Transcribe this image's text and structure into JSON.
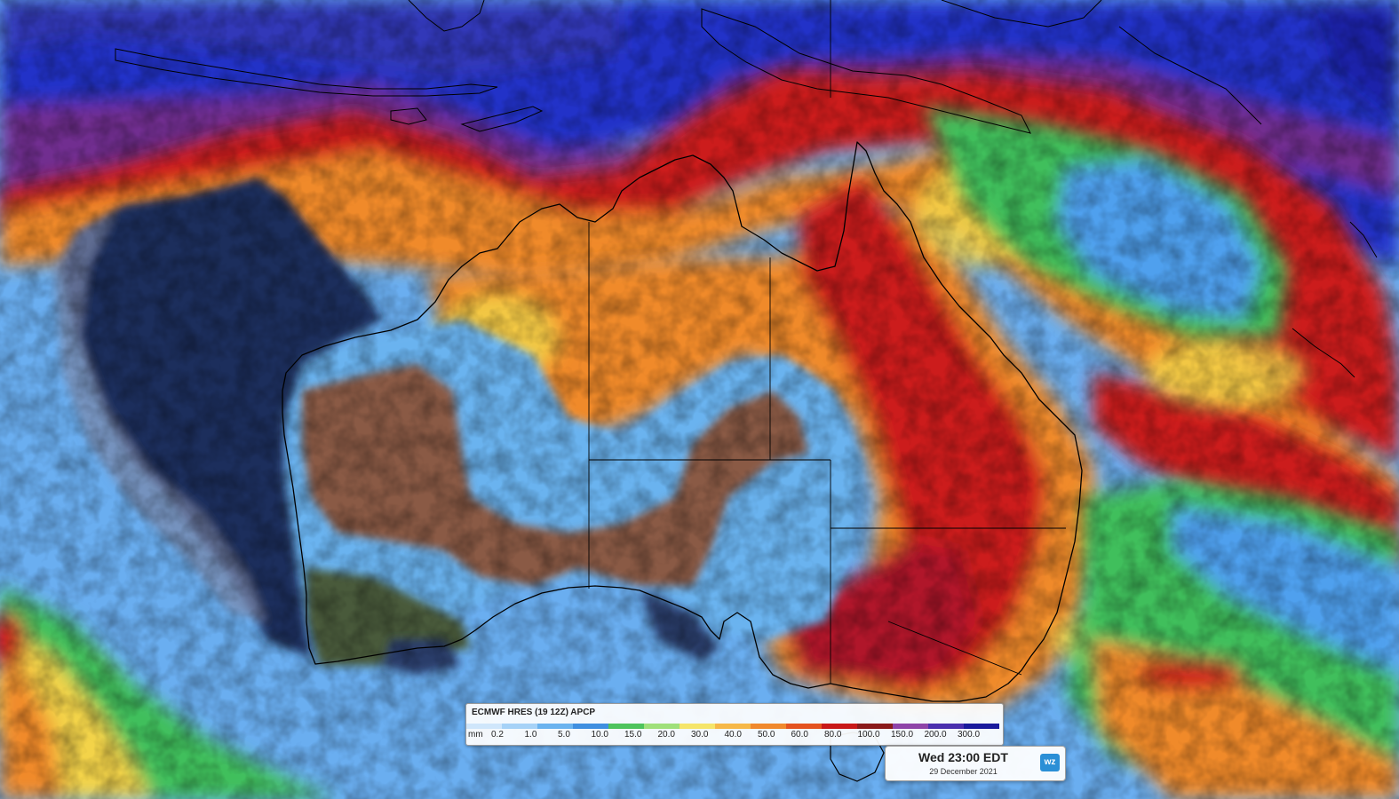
{
  "map": {
    "region": "Australia",
    "colors": {
      "ocean_dry": "#6aaef0",
      "very_dry_ocean": "#1e2f5c",
      "land_dry": "#8a5a44",
      "land_sw": "#4a5a3a",
      "light_rain": "#4fa0ee",
      "green": "#3fbf5c",
      "yellow": "#f3d34a",
      "orange": "#f08a2a",
      "red": "#cc1f1f",
      "purple": "#7a2f8a",
      "blue_heavy": "#2130c8",
      "boundary": "#000000"
    }
  },
  "legend": {
    "title": "ECMWF HRES (19 12Z) APCP",
    "unit": "mm",
    "values": [
      "0.2",
      "1.0",
      "5.0",
      "10.0",
      "15.0",
      "20.0",
      "30.0",
      "40.0",
      "50.0",
      "60.0",
      "80.0",
      "100.0",
      "150.0",
      "200.0",
      "300.0"
    ],
    "colors": [
      "#cfe6fb",
      "#a6d2f7",
      "#6ab3ef",
      "#3f8fe0",
      "#4ec45c",
      "#9fe07a",
      "#f5e56a",
      "#f6b848",
      "#f0892c",
      "#e4531f",
      "#c81818",
      "#8a1a1a",
      "#8e44a8",
      "#4a2fae",
      "#1a1a9c"
    ]
  },
  "timebox": {
    "main": "Wed 23:00 EDT",
    "date": "29 December 2021",
    "logo": "wz"
  }
}
